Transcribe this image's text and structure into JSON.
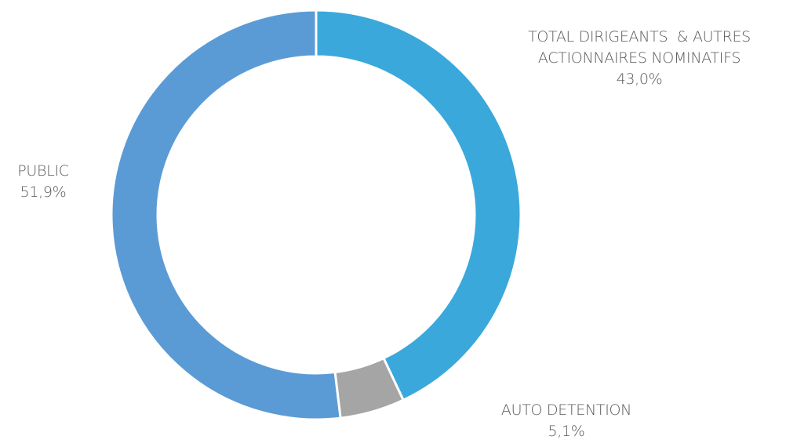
{
  "chart_data": {
    "type": "donut",
    "categories": [
      "TOTAL DIRIGEANTS  & AUTRES ACTIONNAIRES NOMINATIFS",
      "AUTO DETENTION",
      "PUBLIC"
    ],
    "values": [
      43.0,
      5.1,
      51.9
    ],
    "value_labels": [
      "43,0%",
      "5,1%",
      "51,9%"
    ],
    "colors": [
      "#3aa8db",
      "#a5a5a5",
      "#5b9bd5"
    ]
  }
}
